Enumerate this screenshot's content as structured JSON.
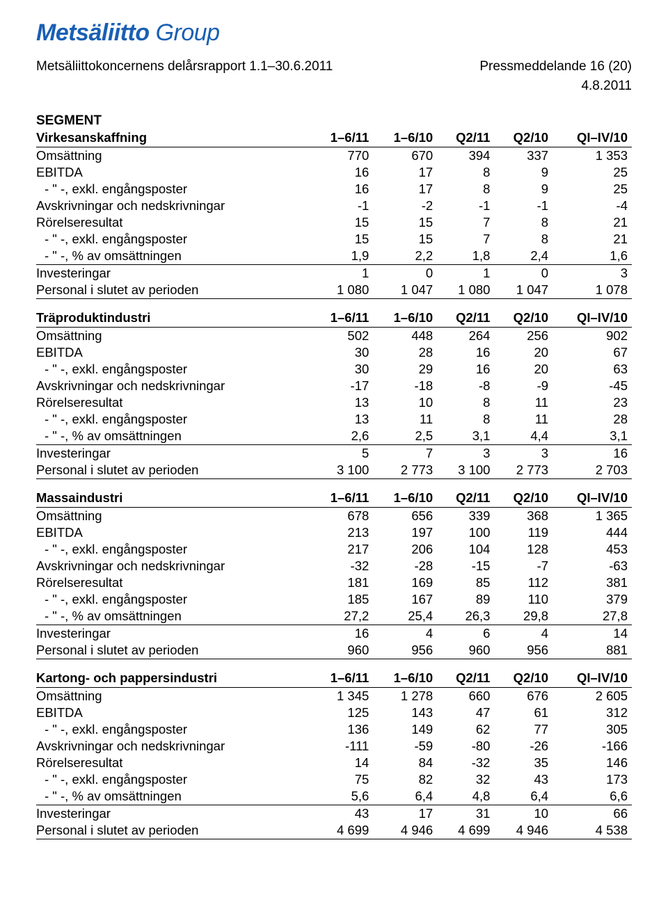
{
  "logo_main": "Metsäliitto",
  "logo_sub": "Group",
  "header_left": "Metsäliittokoncernens delårsrapport 1.1–30.6.2011",
  "header_right": "Pressmeddelande 16 (20)",
  "header_date": "4.8.2011",
  "segment_heading": "SEGMENT",
  "col_headers": [
    "1–6/11",
    "1–6/10",
    "Q2/11",
    "Q2/10",
    "QI–IV/10"
  ],
  "row_labels": {
    "omsattning": "Omsättning",
    "ebitda": "EBITDA",
    "exkl_engangs": " - \" -, exkl. engångsposter",
    "avskriv": "Avskrivningar och nedskrivningar",
    "rorelse": "Rörelseresultat",
    "pct_oms": " - \" -, % av omsättningen",
    "invest": "Investeringar",
    "personal": "Personal i slutet av perioden"
  },
  "tables": [
    {
      "title": "Virkesanskaffning",
      "rows": [
        {
          "k": "omsattning",
          "v": [
            "770",
            "670",
            "394",
            "337",
            "1 353"
          ]
        },
        {
          "k": "ebitda",
          "v": [
            "16",
            "17",
            "8",
            "9",
            "25"
          ]
        },
        {
          "k": "exkl_engangs",
          "indent": true,
          "v": [
            "16",
            "17",
            "8",
            "9",
            "25"
          ]
        },
        {
          "k": "avskriv",
          "v": [
            "-1",
            "-2",
            "-1",
            "-1",
            "-4"
          ]
        },
        {
          "k": "rorelse",
          "v": [
            "15",
            "15",
            "7",
            "8",
            "21"
          ]
        },
        {
          "k": "exkl_engangs",
          "indent": true,
          "v": [
            "15",
            "15",
            "7",
            "8",
            "21"
          ]
        },
        {
          "k": "pct_oms",
          "indent": true,
          "sep_after": true,
          "v": [
            "1,9",
            "2,2",
            "1,8",
            "2,4",
            "1,6"
          ]
        },
        {
          "k": "invest",
          "v": [
            "1",
            "0",
            "1",
            "0",
            "3"
          ]
        },
        {
          "k": "personal",
          "sep_after": true,
          "v": [
            "1 080",
            "1 047",
            "1 080",
            "1 047",
            "1 078"
          ]
        }
      ]
    },
    {
      "title": "Träproduktindustri",
      "rows": [
        {
          "k": "omsattning",
          "v": [
            "502",
            "448",
            "264",
            "256",
            "902"
          ]
        },
        {
          "k": "ebitda",
          "v": [
            "30",
            "28",
            "16",
            "20",
            "67"
          ]
        },
        {
          "k": "exkl_engangs",
          "indent": true,
          "v": [
            "30",
            "29",
            "16",
            "20",
            "63"
          ]
        },
        {
          "k": "avskriv",
          "v": [
            "-17",
            "-18",
            "-8",
            "-9",
            "-45"
          ]
        },
        {
          "k": "rorelse",
          "v": [
            "13",
            "10",
            "8",
            "11",
            "23"
          ]
        },
        {
          "k": "exkl_engangs",
          "indent": true,
          "v": [
            "13",
            "11",
            "8",
            "11",
            "28"
          ]
        },
        {
          "k": "pct_oms",
          "indent": true,
          "sep_after": true,
          "v": [
            "2,6",
            "2,5",
            "3,1",
            "4,4",
            "3,1"
          ]
        },
        {
          "k": "invest",
          "v": [
            "5",
            "7",
            "3",
            "3",
            "16"
          ]
        },
        {
          "k": "personal",
          "sep_after": true,
          "v": [
            "3 100",
            "2 773",
            "3 100",
            "2 773",
            "2 703"
          ]
        }
      ]
    },
    {
      "title": "Massaindustri",
      "rows": [
        {
          "k": "omsattning",
          "v": [
            "678",
            "656",
            "339",
            "368",
            "1 365"
          ]
        },
        {
          "k": "ebitda",
          "v": [
            "213",
            "197",
            "100",
            "119",
            "444"
          ]
        },
        {
          "k": "exkl_engangs",
          "indent": true,
          "v": [
            "217",
            "206",
            "104",
            "128",
            "453"
          ]
        },
        {
          "k": "avskriv",
          "v": [
            "-32",
            "-28",
            "-15",
            "-7",
            "-63"
          ]
        },
        {
          "k": "rorelse",
          "v": [
            "181",
            "169",
            "85",
            "112",
            "381"
          ]
        },
        {
          "k": "exkl_engangs",
          "indent": true,
          "v": [
            "185",
            "167",
            "89",
            "110",
            "379"
          ]
        },
        {
          "k": "pct_oms",
          "indent": true,
          "sep_after": true,
          "v": [
            "27,2",
            "25,4",
            "26,3",
            "29,8",
            "27,8"
          ]
        },
        {
          "k": "invest",
          "v": [
            "16",
            "4",
            "6",
            "4",
            "14"
          ]
        },
        {
          "k": "personal",
          "sep_after": true,
          "v": [
            "960",
            "956",
            "960",
            "956",
            "881"
          ]
        }
      ]
    },
    {
      "title": "Kartong- och pappersindustri",
      "rows": [
        {
          "k": "omsattning",
          "v": [
            "1 345",
            "1 278",
            "660",
            "676",
            "2 605"
          ]
        },
        {
          "k": "ebitda",
          "v": [
            "125",
            "143",
            "47",
            "61",
            "312"
          ]
        },
        {
          "k": "exkl_engangs",
          "indent": true,
          "v": [
            "136",
            "149",
            "62",
            "77",
            "305"
          ]
        },
        {
          "k": "avskriv",
          "v": [
            "-111",
            "-59",
            "-80",
            "-26",
            "-166"
          ]
        },
        {
          "k": "rorelse",
          "v": [
            "14",
            "84",
            "-32",
            "35",
            "146"
          ]
        },
        {
          "k": "exkl_engangs",
          "indent": true,
          "v": [
            "75",
            "82",
            "32",
            "43",
            "173"
          ]
        },
        {
          "k": "pct_oms",
          "indent": true,
          "sep_after": true,
          "v": [
            "5,6",
            "6,4",
            "4,8",
            "6,4",
            "6,6"
          ]
        },
        {
          "k": "invest",
          "v": [
            "43",
            "17",
            "31",
            "10",
            "66"
          ]
        },
        {
          "k": "personal",
          "sep_after": true,
          "v": [
            "4 699",
            "4 946",
            "4 699",
            "4 946",
            "4 538"
          ]
        }
      ]
    }
  ],
  "style": {
    "brand_color": "#1a5fb4",
    "text_color": "#000000",
    "background_color": "#ffffff",
    "border_color": "#000000",
    "body_fontsize": 18.5,
    "header_fontsize": 19,
    "logo_fontsize": 34
  }
}
